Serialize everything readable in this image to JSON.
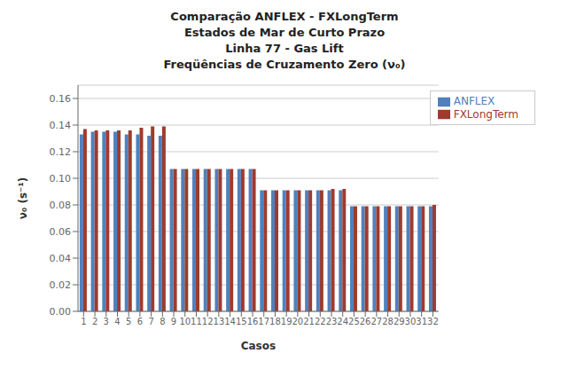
{
  "chart_data": {
    "type": "bar",
    "title": [
      "Comparação ANFLEX - FXLongTerm",
      "Estados de Mar de Curto Prazo",
      "Linha 77 - Gas Lift",
      "Freqüências de Cruzamento Zero (ν₀)"
    ],
    "x_label": "Casos",
    "y_label": "ν₀ (s⁻¹)",
    "categories": [
      1,
      2,
      3,
      4,
      5,
      6,
      7,
      8,
      9,
      10,
      11,
      12,
      13,
      14,
      15,
      16,
      17,
      18,
      19,
      20,
      21,
      22,
      23,
      24,
      25,
      26,
      27,
      28,
      29,
      30,
      31,
      32
    ],
    "series": [
      {
        "name": "ANFLEX",
        "color": "#4F81BD",
        "values": [
          0.133,
          0.135,
          0.135,
          0.135,
          0.133,
          0.133,
          0.132,
          0.132,
          0.107,
          0.107,
          0.107,
          0.107,
          0.107,
          0.107,
          0.107,
          0.107,
          0.091,
          0.091,
          0.091,
          0.091,
          0.091,
          0.091,
          0.091,
          0.091,
          0.079,
          0.079,
          0.079,
          0.079,
          0.079,
          0.079,
          0.079,
          0.079
        ]
      },
      {
        "name": "FXLongTerm",
        "color": "#9E3B2E",
        "values": [
          0.137,
          0.136,
          0.136,
          0.136,
          0.136,
          0.138,
          0.139,
          0.139,
          0.107,
          0.107,
          0.107,
          0.107,
          0.107,
          0.107,
          0.107,
          0.107,
          0.091,
          0.091,
          0.091,
          0.091,
          0.091,
          0.091,
          0.092,
          0.092,
          0.079,
          0.079,
          0.079,
          0.079,
          0.079,
          0.079,
          0.079,
          0.08
        ]
      }
    ],
    "ylim": [
      0.0,
      0.17
    ],
    "yticks": [
      {
        "value": 0.0,
        "label": "0.00"
      },
      0.02,
      0.04,
      0.06,
      0.08,
      {
        "value": 0.1,
        "label": "0.10"
      },
      0.12,
      0.14,
      0.16
    ],
    "grid": true,
    "legend": "upper right"
  }
}
